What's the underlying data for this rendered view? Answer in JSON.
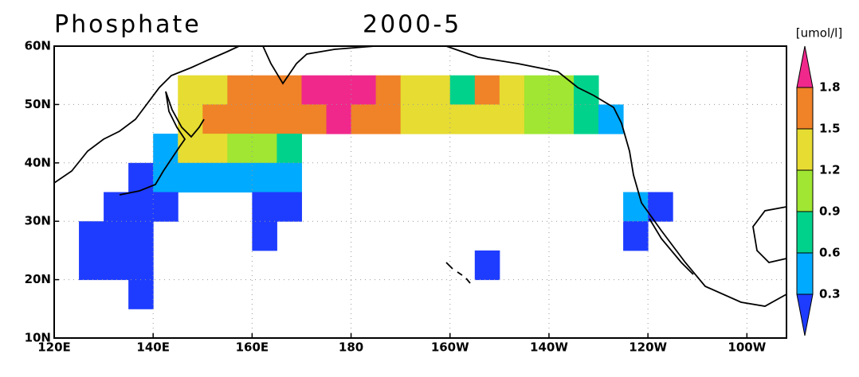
{
  "chart_data": {
    "type": "gridmap",
    "title": "Phosphate",
    "subtitle": "2000-5",
    "unit_label": "[umol/l]",
    "xlim": [
      120,
      268
    ],
    "ylim": [
      10,
      60
    ],
    "xticks": [
      {
        "value": 120,
        "label": "120E"
      },
      {
        "value": 140,
        "label": "140E"
      },
      {
        "value": 160,
        "label": "160E"
      },
      180,
      {
        "value": 200,
        "label": "160W"
      },
      {
        "value": 220,
        "label": "140W"
      },
      {
        "value": 240,
        "label": "120W"
      },
      {
        "value": 260,
        "label": "100W"
      }
    ],
    "yticks": [
      {
        "value": 10,
        "label": "10N"
      },
      {
        "value": 20,
        "label": "20N"
      },
      {
        "value": 30,
        "label": "30N"
      },
      {
        "value": 40,
        "label": "40N"
      },
      {
        "value": 50,
        "label": "50N"
      },
      {
        "value": 60,
        "label": "60N"
      }
    ],
    "grid": true,
    "levels": [
      0.3,
      0.6,
      0.9,
      1.2,
      1.5,
      1.8
    ],
    "colors": [
      "#1e3cff",
      "#00aaff",
      "#00d28c",
      "#a0e632",
      "#e6dc32",
      "#f08228",
      "#f0288c"
    ],
    "field": {
      "lon": [
        127.5,
        132.5,
        137.5,
        142.5,
        147.5,
        152.5,
        157.5,
        162.5,
        167.5,
        172.5,
        177.5,
        182.5,
        187.5,
        192.5,
        197.5,
        202.5,
        207.5,
        212.5,
        217.5,
        222.5,
        227.5,
        232.5,
        237.5,
        242.5
      ],
      "lat": [
        52.5,
        47.5,
        42.5,
        37.5,
        32.5,
        27.5,
        22.5,
        17.5
      ],
      "values": [
        [
          null,
          null,
          null,
          null,
          1.3,
          1.3,
          1.6,
          1.6,
          1.7,
          1.9,
          1.9,
          1.9,
          1.6,
          1.4,
          1.3,
          0.7,
          1.6,
          1.4,
          1.1,
          1.0,
          0.8,
          null,
          null,
          null
        ],
        [
          null,
          null,
          null,
          null,
          1.3,
          1.6,
          1.6,
          1.7,
          1.6,
          1.7,
          1.8,
          1.6,
          1.5,
          1.4,
          1.3,
          1.3,
          1.4,
          1.3,
          1.1,
          1.0,
          0.8,
          0.5,
          null,
          null
        ],
        [
          null,
          null,
          null,
          0.5,
          1.3,
          1.2,
          1.0,
          1.0,
          0.8,
          null,
          null,
          null,
          null,
          null,
          null,
          null,
          null,
          null,
          null,
          null,
          null,
          null,
          null,
          null
        ],
        [
          null,
          null,
          0.2,
          0.5,
          0.5,
          0.4,
          0.4,
          0.5,
          0.4,
          null,
          null,
          null,
          null,
          null,
          null,
          null,
          null,
          null,
          null,
          null,
          null,
          null,
          null,
          null
        ],
        [
          null,
          0.2,
          0.2,
          0.2,
          null,
          null,
          null,
          0.2,
          0.2,
          null,
          null,
          null,
          null,
          null,
          null,
          null,
          null,
          null,
          null,
          null,
          null,
          null,
          0.4,
          0.2
        ],
        [
          0.2,
          0.2,
          0.2,
          null,
          null,
          null,
          null,
          0.2,
          null,
          null,
          null,
          null,
          null,
          null,
          null,
          null,
          null,
          null,
          null,
          null,
          null,
          null,
          0.2,
          null
        ],
        [
          0.2,
          0.2,
          0.2,
          null,
          null,
          null,
          null,
          null,
          null,
          null,
          null,
          null,
          null,
          null,
          null,
          null,
          0.2,
          null,
          null,
          null,
          null,
          null,
          null,
          null
        ],
        [
          null,
          null,
          0.2,
          null,
          null,
          null,
          null,
          null,
          null,
          null,
          null,
          null,
          null,
          null,
          null,
          null,
          null,
          null,
          null,
          null,
          null,
          null,
          null,
          null
        ]
      ]
    }
  }
}
